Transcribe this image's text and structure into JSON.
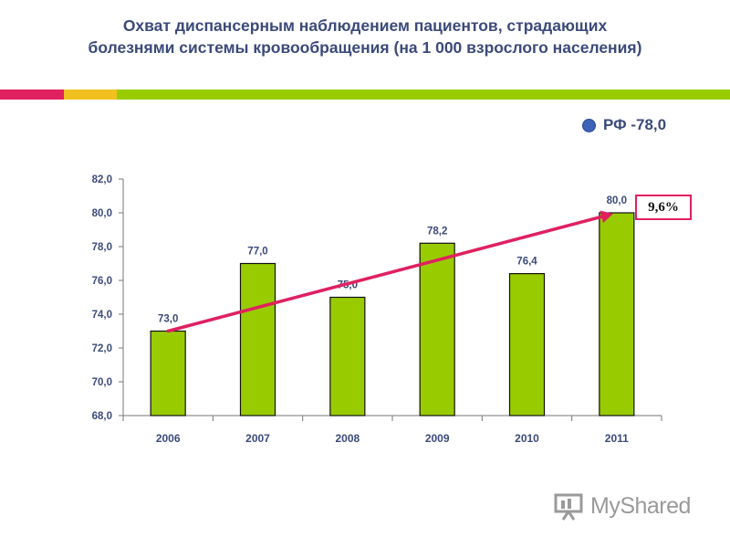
{
  "title": {
    "line1": "Охват диспансерным наблюдением пациентов, страдающих",
    "line2": "болезнями системы кровообращения (на 1 000 взрослого населения)"
  },
  "legend": {
    "label": "РФ -78,0",
    "color": "#3d63b8"
  },
  "badge": {
    "label": "9,6%"
  },
  "watermark": {
    "text": "MyShared"
  },
  "colors": {
    "bar": "#99cc00",
    "trend": "#e0205f",
    "title": "#3b4a7a",
    "stripe_pink": "#e0205f",
    "stripe_yellow": "#f0c020",
    "stripe_green": "#99cc00"
  },
  "chart_data": {
    "type": "bar",
    "categories": [
      "2006",
      "2007",
      "2008",
      "2009",
      "2010",
      "2011"
    ],
    "values": [
      73.0,
      77.0,
      75.0,
      78.2,
      76.4,
      80.0
    ],
    "data_labels": [
      "73,0",
      "77,0",
      "75,0",
      "78,2",
      "76,4",
      "80,0"
    ],
    "yticks": [
      68.0,
      70.0,
      72.0,
      74.0,
      76.0,
      78.0,
      80.0,
      82.0
    ],
    "ytick_labels": [
      "68,0",
      "70,0",
      "72,0",
      "74,0",
      "76,0",
      "78,0",
      "80,0",
      "82,0"
    ],
    "ylim": [
      68,
      82
    ],
    "grid": false,
    "trend": {
      "from": 73.0,
      "to": 80.0,
      "label": "9,6%"
    }
  }
}
